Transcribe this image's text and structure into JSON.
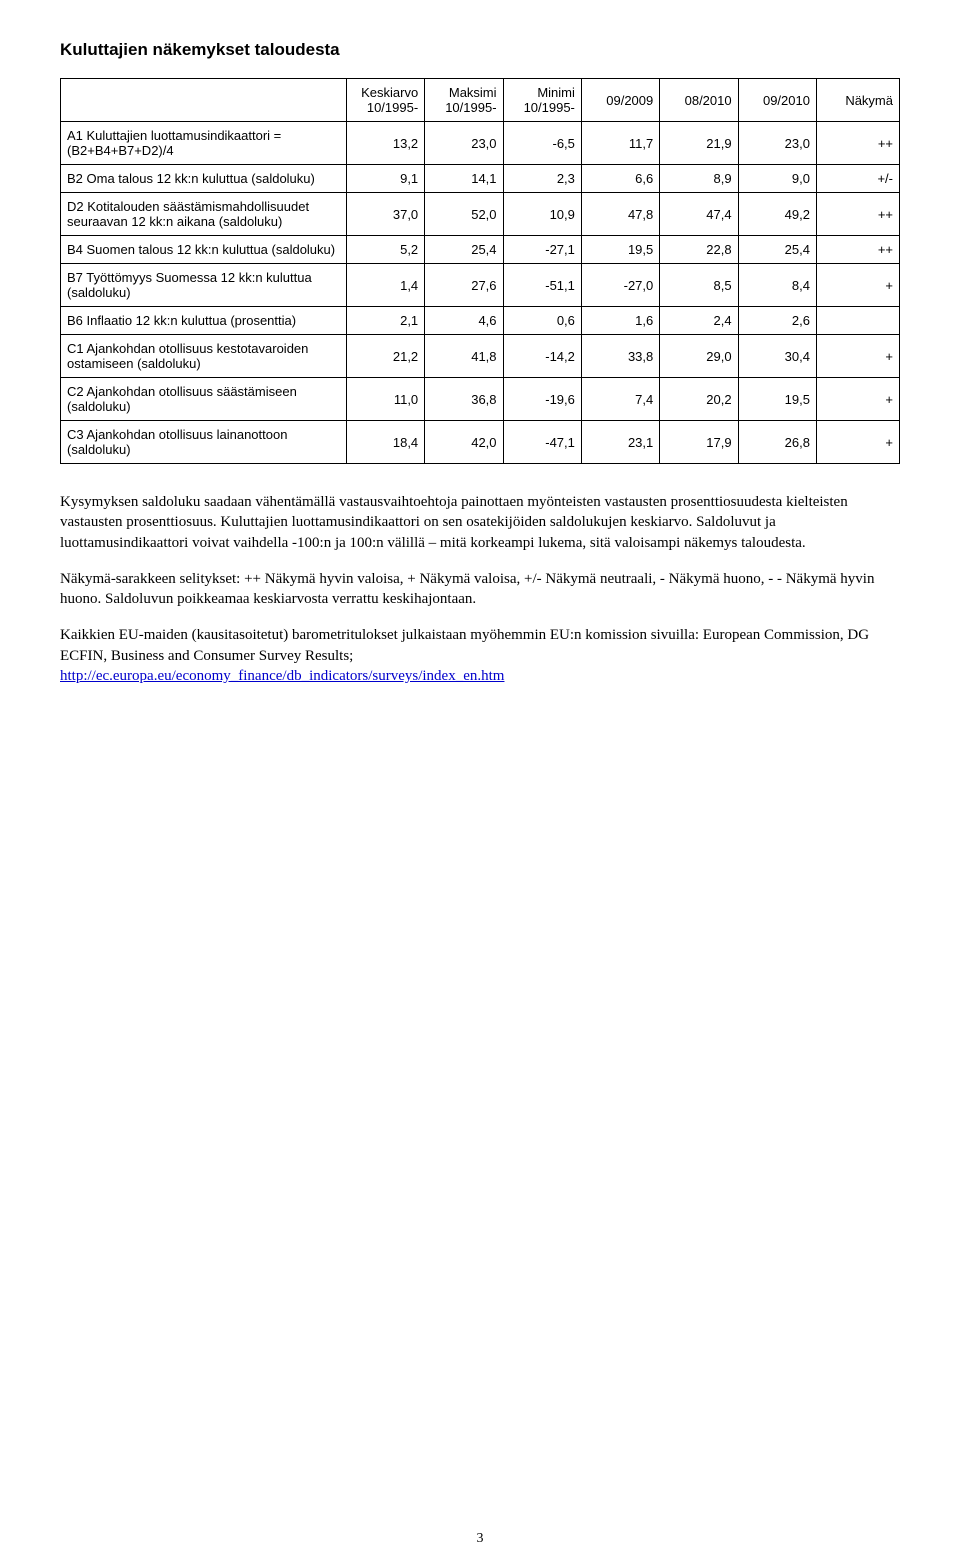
{
  "title": "Kuluttajien näkemykset taloudesta",
  "table": {
    "columns": [
      {
        "key": "label",
        "header": "",
        "align": "left"
      },
      {
        "key": "avg",
        "header": "Keskiarvo 10/1995-",
        "align": "right"
      },
      {
        "key": "max",
        "header": "Maksimi 10/1995-",
        "align": "right"
      },
      {
        "key": "min",
        "header": "Minimi 10/1995-",
        "align": "right"
      },
      {
        "key": "p0909",
        "header": "09/2009",
        "align": "right"
      },
      {
        "key": "p0810",
        "header": "08/2010",
        "align": "right"
      },
      {
        "key": "p0910",
        "header": "09/2010",
        "align": "right"
      },
      {
        "key": "outlook",
        "header": "Näkymä",
        "align": "right"
      }
    ],
    "rows": [
      {
        "label": "A1 Kuluttajien luottamusindikaattori = (B2+B4+B7+D2)/4",
        "avg": "13,2",
        "max": "23,0",
        "min": "-6,5",
        "p0909": "11,7",
        "p0810": "21,9",
        "p0910": "23,0",
        "outlook": "++"
      },
      {
        "label": "B2 Oma talous 12 kk:n kuluttua (saldoluku)",
        "avg": "9,1",
        "max": "14,1",
        "min": "2,3",
        "p0909": "6,6",
        "p0810": "8,9",
        "p0910": "9,0",
        "outlook": "+/-"
      },
      {
        "label": "D2 Kotitalouden säästämismahdollisuudet seuraavan 12 kk:n aikana (saldoluku)",
        "avg": "37,0",
        "max": "52,0",
        "min": "10,9",
        "p0909": "47,8",
        "p0810": "47,4",
        "p0910": "49,2",
        "outlook": "++"
      },
      {
        "label": "B4 Suomen talous 12 kk:n kuluttua (saldoluku)",
        "avg": "5,2",
        "max": "25,4",
        "min": "-27,1",
        "p0909": "19,5",
        "p0810": "22,8",
        "p0910": "25,4",
        "outlook": "++"
      },
      {
        "label": "B7 Työttömyys Suomessa 12 kk:n kuluttua (saldoluku)",
        "avg": "1,4",
        "max": "27,6",
        "min": "-51,1",
        "p0909": "-27,0",
        "p0810": "8,5",
        "p0910": "8,4",
        "outlook": "+"
      },
      {
        "label": "B6 Inflaatio 12 kk:n kuluttua (prosenttia)",
        "avg": "2,1",
        "max": "4,6",
        "min": "0,6",
        "p0909": "1,6",
        "p0810": "2,4",
        "p0910": "2,6",
        "outlook": ""
      },
      {
        "label": "C1 Ajankohdan otollisuus kestotavaroiden ostamiseen (saldoluku)",
        "avg": "21,2",
        "max": "41,8",
        "min": "-14,2",
        "p0909": "33,8",
        "p0810": "29,0",
        "p0910": "30,4",
        "outlook": "+"
      },
      {
        "label": "C2 Ajankohdan otollisuus säästämiseen (saldoluku)",
        "avg": "11,0",
        "max": "36,8",
        "min": "-19,6",
        "p0909": "7,4",
        "p0810": "20,2",
        "p0910": "19,5",
        "outlook": "+"
      },
      {
        "label": "C3 Ajankohdan otollisuus lainanottoon (saldoluku)",
        "avg": "18,4",
        "max": "42,0",
        "min": "-47,1",
        "p0909": "23,1",
        "p0810": "17,9",
        "p0910": "26,8",
        "outlook": "+"
      }
    ],
    "border_color": "#000000",
    "font_size_pt": 10
  },
  "paragraphs": [
    "Kysymyksen saldoluku saadaan vähentämällä vastausvaihtoehtoja painottaen myönteisten vastausten prosenttiosuudesta kielteisten vastausten prosenttiosuus. Kuluttajien luottamusindikaattori on sen osatekijöiden saldolukujen keskiarvo. Saldoluvut ja luottamusindikaattori voivat vaihdella -100:n ja 100:n välillä – mitä korkeampi lukema, sitä valoisampi näkemys taloudesta.",
    "Näkymä-sarakkeen selitykset: ++ Näkymä hyvin valoisa, + Näkymä valoisa, +/- Näkymä neutraali, - Näkymä huono, - - Näkymä hyvin huono. Saldoluvun poikkeamaa keskiarvosta verrattu keskihajontaan.",
    "Kaikkien EU-maiden (kausitasoitetut) barometritulokset julkaistaan myöhemmin EU:n komission sivuilla: European Commission, DG ECFIN, Business and Consumer Survey Results;"
  ],
  "link": {
    "text": "http://ec.europa.eu/economy_finance/db_indicators/surveys/index_en.htm",
    "color": "#0000cc"
  },
  "page_number": "3"
}
